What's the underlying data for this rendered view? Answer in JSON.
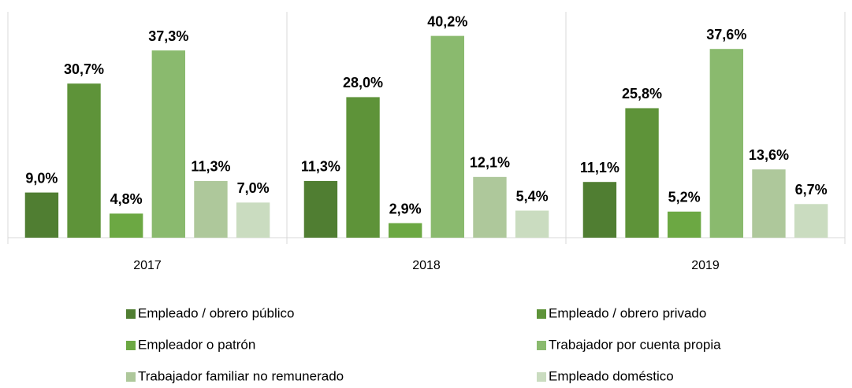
{
  "chart_data": {
    "type": "bar",
    "categories": [
      "2017",
      "2018",
      "2019"
    ],
    "series": [
      {
        "name": "Empleado / obrero público",
        "color": "#507e32",
        "values": [
          9.0,
          11.3,
          11.1
        ],
        "value_labels": [
          "9,0%",
          "11,3%",
          "11,1%"
        ]
      },
      {
        "name": "Empleado / obrero privado",
        "color": "#5e9339",
        "values": [
          30.7,
          28.0,
          25.8
        ],
        "value_labels": [
          "30,7%",
          "28,0%",
          "25,8%"
        ]
      },
      {
        "name": "Empleador o patrón",
        "color": "#6ca843",
        "values": [
          4.8,
          2.9,
          5.2
        ],
        "value_labels": [
          "4,8%",
          "2,9%",
          "5,2%"
        ]
      },
      {
        "name": "Trabajador por cuenta propia",
        "color": "#8aba6e",
        "values": [
          37.3,
          40.2,
          37.6
        ],
        "value_labels": [
          "37,3%",
          "40,2%",
          "37,6%"
        ]
      },
      {
        "name": "Trabajador familiar no remunerado",
        "color": "#aec89b",
        "values": [
          11.3,
          12.1,
          13.6
        ],
        "value_labels": [
          "11,3%",
          "12,1%",
          "13,6%"
        ]
      },
      {
        "name": "Empleado doméstico",
        "color": "#cadcc0",
        "values": [
          7.0,
          5.4,
          6.7
        ],
        "value_labels": [
          "7,0%",
          "5,4%",
          "6,7%"
        ]
      }
    ],
    "ylim": [
      0,
      45
    ],
    "legend": "bottom"
  }
}
